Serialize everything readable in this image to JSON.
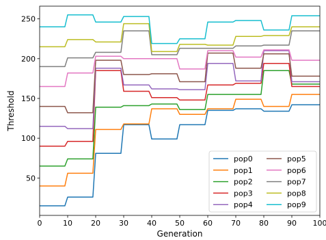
{
  "chart_data": {
    "type": "line",
    "title": "",
    "xlabel": "Generation",
    "ylabel": "Threshold",
    "xlim": [
      0,
      100
    ],
    "ylim": [
      3,
      266
    ],
    "xticks": [
      0,
      10,
      20,
      30,
      40,
      50,
      60,
      70,
      80,
      90,
      100
    ],
    "yticks": [
      50,
      100,
      150,
      200,
      250
    ],
    "grid": false,
    "legend": "lower-right",
    "legend_columns": 2,
    "x": [
      0,
      1,
      2,
      3,
      4,
      5,
      6,
      7,
      8,
      9,
      10,
      11,
      12,
      13,
      14,
      15,
      16,
      17,
      18,
      19,
      20,
      21,
      22,
      23,
      24,
      25,
      26,
      27,
      28,
      29,
      30,
      31,
      32,
      33,
      34,
      35,
      36,
      37,
      38,
      39,
      40,
      41,
      42,
      43,
      44,
      45,
      46,
      47,
      48,
      49,
      50,
      51,
      52,
      53,
      54,
      55,
      56,
      57,
      58,
      59,
      60,
      61,
      62,
      63,
      64,
      65,
      66,
      67,
      68,
      69,
      70,
      71,
      72,
      73,
      74,
      75,
      76,
      77,
      78,
      79,
      80,
      81,
      82,
      83,
      84,
      85,
      86,
      87,
      88,
      89,
      90,
      91,
      92,
      93,
      94,
      95,
      96,
      97,
      98,
      99,
      100
    ],
    "series": [
      {
        "name": "pop0",
        "color": "#1f77b4",
        "steps": [
          15,
          26,
          81,
          117,
          99,
          117,
          135,
          137,
          134,
          142
        ]
      },
      {
        "name": "pop1",
        "color": "#ff7f0e",
        "steps": [
          40,
          56,
          111,
          118,
          137,
          130,
          137,
          149,
          140,
          155
        ]
      },
      {
        "name": "pop2",
        "color": "#2ca02c",
        "steps": [
          65,
          74,
          139,
          141,
          143,
          136,
          155,
          155,
          185,
          168
        ]
      },
      {
        "name": "pop3",
        "color": "#d62728",
        "steps": [
          90,
          96,
          185,
          159,
          151,
          148,
          167,
          169,
          194,
          165
        ]
      },
      {
        "name": "pop4",
        "color": "#9467bd",
        "steps": [
          115,
          112,
          188,
          167,
          162,
          161,
          194,
          172,
          210,
          171
        ]
      },
      {
        "name": "pop5",
        "color": "#8c564b",
        "steps": [
          140,
          132,
          198,
          180,
          181,
          171,
          207,
          188,
          206,
          178
        ]
      },
      {
        "name": "pop6",
        "color": "#e377c2",
        "steps": [
          165,
          182,
          203,
          200,
          200,
          187,
          210,
          202,
          211,
          198
        ]
      },
      {
        "name": "pop7",
        "color": "#7f7f7f",
        "steps": [
          190,
          201,
          208,
          235,
          205,
          213,
          213,
          216,
          217,
          235
        ]
      },
      {
        "name": "pop8",
        "color": "#bcbd22",
        "steps": [
          215,
          224,
          221,
          244,
          209,
          218,
          217,
          228,
          229,
          240
        ]
      },
      {
        "name": "pop9",
        "color": "#17becf",
        "steps": [
          240,
          255,
          246,
          253,
          219,
          225,
          246,
          248,
          236,
          254
        ]
      }
    ]
  }
}
